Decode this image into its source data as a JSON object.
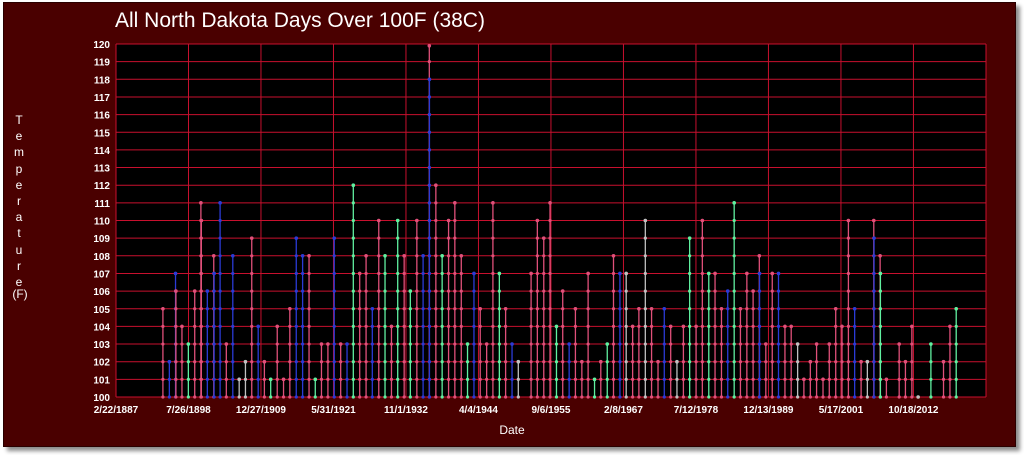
{
  "chart_data": {
    "type": "line",
    "title": "All North Dakota Days Over 100F (38C)",
    "ylabel": "Temperature",
    "yunit": "(F)",
    "xlabel": "Date",
    "ylim": [
      100,
      120
    ],
    "yticks": [
      100,
      101,
      102,
      103,
      104,
      105,
      106,
      107,
      108,
      109,
      110,
      111,
      112,
      113,
      114,
      115,
      116,
      117,
      118,
      119,
      120
    ],
    "xlim": [
      "1887-02-22",
      "2024-03-25"
    ],
    "xticks": [
      {
        "label": "2/22/1887",
        "date": "1887-02-22"
      },
      {
        "label": "7/26/1898",
        "date": "1898-07-26"
      },
      {
        "label": "12/27/1909",
        "date": "1909-12-27"
      },
      {
        "label": "5/31/1921",
        "date": "1921-05-31"
      },
      {
        "label": "11/1/1932",
        "date": "1932-11-01"
      },
      {
        "label": "4/4/1944",
        "date": "1944-04-04"
      },
      {
        "label": "9/6/1955",
        "date": "1955-09-06"
      },
      {
        "label": "2/8/1967",
        "date": "1967-02-08"
      },
      {
        "label": "7/12/1978",
        "date": "1978-07-12"
      },
      {
        "label": "12/13/1989",
        "date": "1989-12-13"
      },
      {
        "label": "5/17/2001",
        "date": "2001-05-17"
      },
      {
        "label": "10/18/2012",
        "date": "2012-10-18"
      }
    ],
    "grid": true,
    "colors": {
      "background": "#000000",
      "frame": "#4a0000",
      "grid": "#c8102e",
      "text": "#ffffff",
      "palette": [
        "#2b3bd6",
        "#e0507a",
        "#60f0a0",
        "#c0c0c0"
      ]
    },
    "series_note_unprinted": true,
    "points": [
      {
        "x": "1894-07-15",
        "y": 105,
        "c": 1
      },
      {
        "x": "1895-07-20",
        "y": 102,
        "c": 0
      },
      {
        "x": "1896-07-10",
        "y": 107,
        "c": 0
      },
      {
        "x": "1896-08-01",
        "y": 106,
        "c": 1
      },
      {
        "x": "1897-07-15",
        "y": 104,
        "c": 1
      },
      {
        "x": "1898-07-18",
        "y": 103,
        "c": 2
      },
      {
        "x": "1899-07-20",
        "y": 106,
        "c": 1
      },
      {
        "x": "1900-07-10",
        "y": 111,
        "c": 1
      },
      {
        "x": "1900-08-05",
        "y": 110,
        "c": 1
      },
      {
        "x": "1901-07-15",
        "y": 106,
        "c": 0
      },
      {
        "x": "1902-07-20",
        "y": 108,
        "c": 1
      },
      {
        "x": "1902-08-10",
        "y": 107,
        "c": 0
      },
      {
        "x": "1903-07-20",
        "y": 111,
        "c": 0
      },
      {
        "x": "1904-07-12",
        "y": 103,
        "c": 1
      },
      {
        "x": "1905-07-20",
        "y": 108,
        "c": 0
      },
      {
        "x": "1906-07-22",
        "y": 101,
        "c": 3
      },
      {
        "x": "1907-07-18",
        "y": 102,
        "c": 3
      },
      {
        "x": "1908-07-15",
        "y": 109,
        "c": 1
      },
      {
        "x": "1909-07-20",
        "y": 104,
        "c": 0
      },
      {
        "x": "1910-07-12",
        "y": 102,
        "c": 1
      },
      {
        "x": "1911-07-10",
        "y": 101,
        "c": 2
      },
      {
        "x": "1912-07-20",
        "y": 104,
        "c": 1
      },
      {
        "x": "1913-07-18",
        "y": 101,
        "c": 1
      },
      {
        "x": "1914-07-15",
        "y": 105,
        "c": 1
      },
      {
        "x": "1915-07-20",
        "y": 109,
        "c": 0
      },
      {
        "x": "1916-07-20",
        "y": 108,
        "c": 0
      },
      {
        "x": "1917-07-25",
        "y": 108,
        "c": 1
      },
      {
        "x": "1918-07-18",
        "y": 101,
        "c": 2
      },
      {
        "x": "1919-07-10",
        "y": 103,
        "c": 1
      },
      {
        "x": "1920-07-15",
        "y": 103,
        "c": 1
      },
      {
        "x": "1921-07-14",
        "y": 109,
        "c": 0
      },
      {
        "x": "1922-07-20",
        "y": 103,
        "c": 1
      },
      {
        "x": "1923-07-20",
        "y": 103,
        "c": 0
      },
      {
        "x": "1924-07-15",
        "y": 112,
        "c": 2
      },
      {
        "x": "1925-07-18",
        "y": 107,
        "c": 1
      },
      {
        "x": "1926-07-20",
        "y": 108,
        "c": 1
      },
      {
        "x": "1927-07-14",
        "y": 105,
        "c": 0
      },
      {
        "x": "1928-07-20",
        "y": 110,
        "c": 1
      },
      {
        "x": "1929-07-15",
        "y": 108,
        "c": 2
      },
      {
        "x": "1930-07-20",
        "y": 104,
        "c": 1
      },
      {
        "x": "1931-07-15",
        "y": 110,
        "c": 2
      },
      {
        "x": "1932-07-20",
        "y": 108,
        "c": 1
      },
      {
        "x": "1933-07-10",
        "y": 106,
        "c": 2
      },
      {
        "x": "1934-07-20",
        "y": 110,
        "c": 1
      },
      {
        "x": "1935-07-15",
        "y": 108,
        "c": 0
      },
      {
        "x": "1936-07-06",
        "y": 121,
        "c": 1
      },
      {
        "x": "1936-07-15",
        "y": 118,
        "c": 0
      },
      {
        "x": "1937-07-18",
        "y": 112,
        "c": 1
      },
      {
        "x": "1938-07-15",
        "y": 108,
        "c": 2
      },
      {
        "x": "1939-07-20",
        "y": 110,
        "c": 1
      },
      {
        "x": "1940-07-15",
        "y": 111,
        "c": 1
      },
      {
        "x": "1941-07-20",
        "y": 108,
        "c": 1
      },
      {
        "x": "1942-07-15",
        "y": 103,
        "c": 2
      },
      {
        "x": "1943-07-20",
        "y": 107,
        "c": 0
      },
      {
        "x": "1944-07-15",
        "y": 105,
        "c": 1
      },
      {
        "x": "1945-07-20",
        "y": 103,
        "c": 1
      },
      {
        "x": "1946-07-15",
        "y": 111,
        "c": 1
      },
      {
        "x": "1947-07-20",
        "y": 107,
        "c": 2
      },
      {
        "x": "1948-07-15",
        "y": 105,
        "c": 1
      },
      {
        "x": "1949-07-20",
        "y": 103,
        "c": 0
      },
      {
        "x": "1950-07-15",
        "y": 102,
        "c": 3
      },
      {
        "x": "1952-07-20",
        "y": 107,
        "c": 1
      },
      {
        "x": "1953-07-15",
        "y": 110,
        "c": 1
      },
      {
        "x": "1954-07-20",
        "y": 109,
        "c": 1
      },
      {
        "x": "1955-07-15",
        "y": 111,
        "c": 1
      },
      {
        "x": "1956-07-20",
        "y": 104,
        "c": 2
      },
      {
        "x": "1957-07-15",
        "y": 106,
        "c": 1
      },
      {
        "x": "1958-07-20",
        "y": 103,
        "c": 0
      },
      {
        "x": "1959-07-15",
        "y": 105,
        "c": 1
      },
      {
        "x": "1960-07-20",
        "y": 102,
        "c": 1
      },
      {
        "x": "1961-07-15",
        "y": 107,
        "c": 1
      },
      {
        "x": "1962-07-20",
        "y": 101,
        "c": 2
      },
      {
        "x": "1963-07-15",
        "y": 102,
        "c": 1
      },
      {
        "x": "1964-07-20",
        "y": 103,
        "c": 2
      },
      {
        "x": "1965-07-15",
        "y": 108,
        "c": 1
      },
      {
        "x": "1966-07-20",
        "y": 107,
        "c": 0
      },
      {
        "x": "1967-07-15",
        "y": 107,
        "c": 3
      },
      {
        "x": "1968-07-20",
        "y": 104,
        "c": 1
      },
      {
        "x": "1969-07-15",
        "y": 105,
        "c": 1
      },
      {
        "x": "1970-07-20",
        "y": 110,
        "c": 3
      },
      {
        "x": "1971-07-15",
        "y": 105,
        "c": 1
      },
      {
        "x": "1972-07-20",
        "y": 102,
        "c": 1
      },
      {
        "x": "1973-07-15",
        "y": 105,
        "c": 0
      },
      {
        "x": "1974-07-20",
        "y": 104,
        "c": 1
      },
      {
        "x": "1975-07-15",
        "y": 102,
        "c": 3
      },
      {
        "x": "1976-07-20",
        "y": 104,
        "c": 1
      },
      {
        "x": "1977-07-15",
        "y": 109,
        "c": 2
      },
      {
        "x": "1978-07-20",
        "y": 104,
        "c": 1
      },
      {
        "x": "1979-07-15",
        "y": 110,
        "c": 1
      },
      {
        "x": "1980-07-20",
        "y": 107,
        "c": 2
      },
      {
        "x": "1981-07-15",
        "y": 107,
        "c": 1
      },
      {
        "x": "1982-07-20",
        "y": 105,
        "c": 1
      },
      {
        "x": "1983-07-15",
        "y": 106,
        "c": 0
      },
      {
        "x": "1984-07-20",
        "y": 111,
        "c": 2
      },
      {
        "x": "1985-07-15",
        "y": 105,
        "c": 1
      },
      {
        "x": "1986-07-20",
        "y": 107,
        "c": 1
      },
      {
        "x": "1987-07-15",
        "y": 106,
        "c": 1
      },
      {
        "x": "1988-07-06",
        "y": 108,
        "c": 1
      },
      {
        "x": "1988-07-20",
        "y": 107,
        "c": 0
      },
      {
        "x": "1989-07-15",
        "y": 103,
        "c": 1
      },
      {
        "x": "1990-07-20",
        "y": 107,
        "c": 1
      },
      {
        "x": "1991-07-15",
        "y": 107,
        "c": 0
      },
      {
        "x": "1992-07-20",
        "y": 104,
        "c": 1
      },
      {
        "x": "1993-07-15",
        "y": 104,
        "c": 1
      },
      {
        "x": "1994-07-20",
        "y": 103,
        "c": 3
      },
      {
        "x": "1995-07-15",
        "y": 101,
        "c": 1
      },
      {
        "x": "1996-07-20",
        "y": 102,
        "c": 1
      },
      {
        "x": "1997-07-15",
        "y": 103,
        "c": 1
      },
      {
        "x": "1998-07-20",
        "y": 101,
        "c": 1
      },
      {
        "x": "1999-07-15",
        "y": 103,
        "c": 1
      },
      {
        "x": "2000-07-20",
        "y": 105,
        "c": 1
      },
      {
        "x": "2001-07-15",
        "y": 104,
        "c": 1
      },
      {
        "x": "2002-07-20",
        "y": 110,
        "c": 1
      },
      {
        "x": "2003-07-15",
        "y": 105,
        "c": 0
      },
      {
        "x": "2004-07-20",
        "y": 102,
        "c": 1
      },
      {
        "x": "2005-07-15",
        "y": 102,
        "c": 3
      },
      {
        "x": "2006-07-20",
        "y": 110,
        "c": 1
      },
      {
        "x": "2006-08-05",
        "y": 109,
        "c": 0
      },
      {
        "x": "2007-07-20",
        "y": 108,
        "c": 1
      },
      {
        "x": "2007-08-05",
        "y": 107,
        "c": 2
      },
      {
        "x": "2008-07-15",
        "y": 101,
        "c": 1
      },
      {
        "x": "2010-07-20",
        "y": 103,
        "c": 1
      },
      {
        "x": "2011-07-15",
        "y": 102,
        "c": 1
      },
      {
        "x": "2012-07-20",
        "y": 104,
        "c": 1
      },
      {
        "x": "2013-07-15",
        "y": 100,
        "c": 3
      },
      {
        "x": "2015-07-20",
        "y": 103,
        "c": 2
      },
      {
        "x": "2017-07-15",
        "y": 102,
        "c": 1
      },
      {
        "x": "2018-07-20",
        "y": 104,
        "c": 1
      },
      {
        "x": "2019-07-15",
        "y": 105,
        "c": 2
      }
    ]
  }
}
